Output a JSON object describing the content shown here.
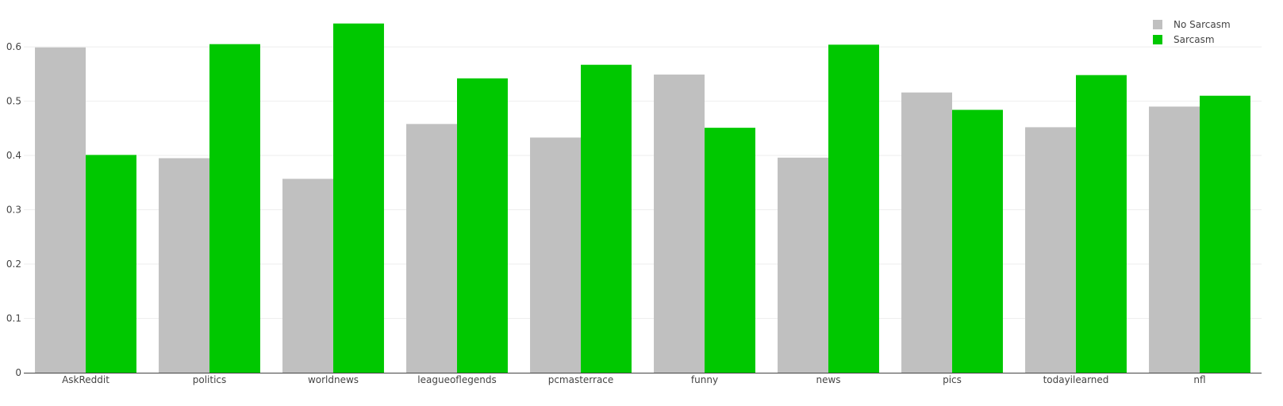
{
  "chart_data": {
    "type": "bar",
    "title": "",
    "xlabel": "",
    "ylabel": "",
    "ylim": [
      0,
      0.66
    ],
    "yticks": [
      0,
      0.1,
      0.2,
      0.3,
      0.4,
      0.5,
      0.6
    ],
    "ytick_labels": [
      "0",
      "0.1",
      "0.2",
      "0.3",
      "0.4",
      "0.5",
      "0.6"
    ],
    "grid": true,
    "legend_position": "top-right",
    "categories": [
      "AskReddit",
      "politics",
      "worldnews",
      "leagueoflegends",
      "pcmasterrace",
      "funny",
      "news",
      "pics",
      "todayilearned",
      "nfl"
    ],
    "series": [
      {
        "name": "No Sarcasm",
        "color": "#c0c0c0",
        "values": [
          0.599,
          0.395,
          0.357,
          0.458,
          0.433,
          0.549,
          0.396,
          0.516,
          0.452,
          0.49
        ]
      },
      {
        "name": "Sarcasm",
        "color": "#00c800",
        "values": [
          0.401,
          0.605,
          0.643,
          0.542,
          0.567,
          0.451,
          0.604,
          0.484,
          0.548,
          0.51
        ]
      }
    ]
  }
}
